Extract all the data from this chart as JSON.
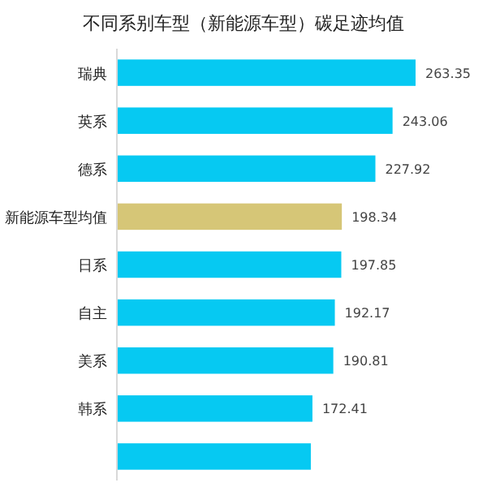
{
  "chart_data": {
    "type": "bar",
    "orientation": "horizontal",
    "title": "不同系别车型（新能源车型）碳足迹均值",
    "categories": [
      "瑞典",
      "英系",
      "德系",
      "新能源车型均值",
      "日系",
      "自主",
      "美系",
      "韩系",
      null
    ],
    "values": [
      263.35,
      243.06,
      227.92,
      198.34,
      197.85,
      192.17,
      190.81,
      172.41,
      171
    ],
    "colors": [
      "#06c9f2",
      "#06c9f2",
      "#06c9f2",
      "#d6c677",
      "#06c9f2",
      "#06c9f2",
      "#06c9f2",
      "#06c9f2",
      "#06c9f2"
    ],
    "value_labels": [
      "263.35",
      "243.06",
      "227.92",
      "198.34",
      "197.85",
      "192.17",
      "190.81",
      "172.41",
      null
    ]
  }
}
